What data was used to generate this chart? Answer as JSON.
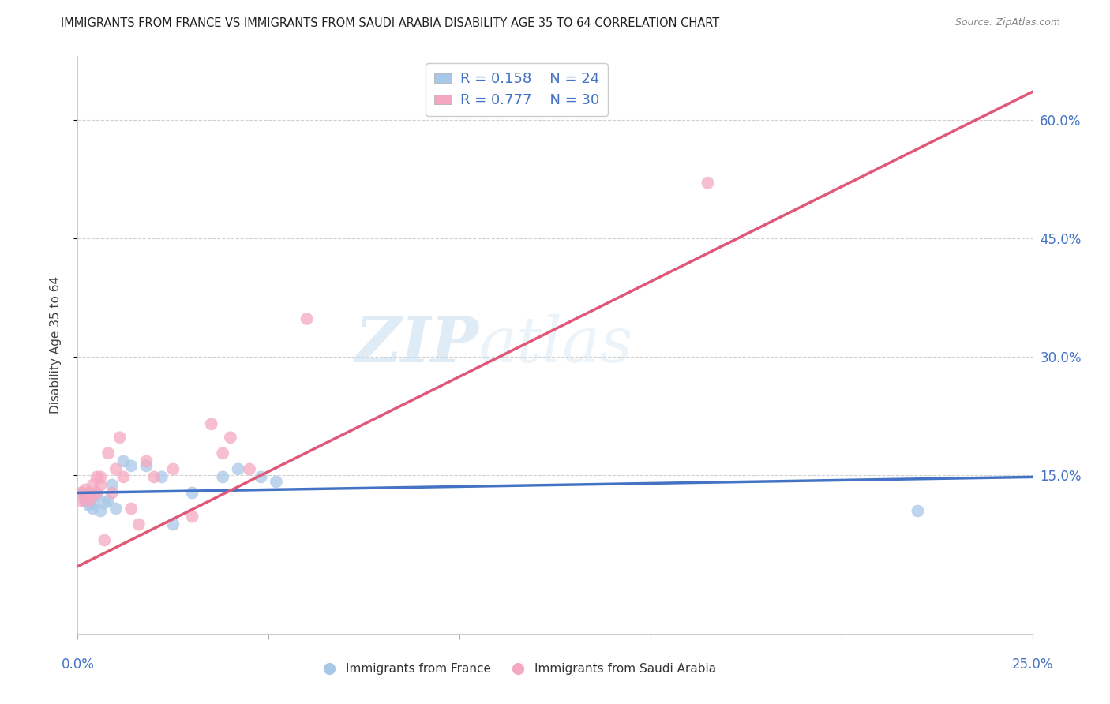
{
  "title": "IMMIGRANTS FROM FRANCE VS IMMIGRANTS FROM SAUDI ARABIA DISABILITY AGE 35 TO 64 CORRELATION CHART",
  "source": "Source: ZipAtlas.com",
  "ylabel": "Disability Age 35 to 64",
  "ytick_labels": [
    "15.0%",
    "30.0%",
    "45.0%",
    "60.0%"
  ],
  "ytick_positions": [
    0.15,
    0.3,
    0.45,
    0.6
  ],
  "xlim": [
    0.0,
    0.25
  ],
  "ylim": [
    -0.05,
    0.68
  ],
  "france_color": "#a8c8e8",
  "france_line_color": "#4472c4",
  "saudi_color": "#f4a8c0",
  "saudi_line_color": "#e05878",
  "france_R": 0.158,
  "france_N": 24,
  "saudi_R": 0.777,
  "saudi_N": 30,
  "legend_label_france": "Immigrants from France",
  "legend_label_saudi": "Immigrants from Saudi Arabia",
  "watermark_zip": "ZIP",
  "watermark_atlas": "atlas",
  "france_x": [
    0.001,
    0.002,
    0.002,
    0.003,
    0.003,
    0.004,
    0.004,
    0.005,
    0.006,
    0.007,
    0.008,
    0.009,
    0.01,
    0.012,
    0.014,
    0.018,
    0.022,
    0.025,
    0.03,
    0.038,
    0.042,
    0.048,
    0.052,
    0.22
  ],
  "france_y": [
    0.128,
    0.118,
    0.122,
    0.112,
    0.12,
    0.108,
    0.115,
    0.125,
    0.105,
    0.115,
    0.118,
    0.138,
    0.108,
    0.168,
    0.162,
    0.162,
    0.148,
    0.088,
    0.128,
    0.148,
    0.158,
    0.148,
    0.142,
    0.105
  ],
  "saudi_x": [
    0.001,
    0.001,
    0.002,
    0.002,
    0.003,
    0.003,
    0.004,
    0.004,
    0.005,
    0.005,
    0.006,
    0.006,
    0.007,
    0.008,
    0.009,
    0.01,
    0.011,
    0.012,
    0.014,
    0.016,
    0.018,
    0.02,
    0.025,
    0.03,
    0.035,
    0.038,
    0.04,
    0.045,
    0.06,
    0.165
  ],
  "saudi_y": [
    0.128,
    0.118,
    0.132,
    0.122,
    0.128,
    0.118,
    0.138,
    0.125,
    0.148,
    0.128,
    0.138,
    0.148,
    0.068,
    0.178,
    0.128,
    0.158,
    0.198,
    0.148,
    0.108,
    0.088,
    0.168,
    0.148,
    0.158,
    0.098,
    0.215,
    0.178,
    0.198,
    0.158,
    0.348,
    0.52
  ],
  "blue_line_x": [
    0.0,
    0.25
  ],
  "blue_line_y": [
    0.128,
    0.148
  ],
  "pink_line_x": [
    0.0,
    0.25
  ],
  "pink_line_y": [
    0.035,
    0.635
  ]
}
